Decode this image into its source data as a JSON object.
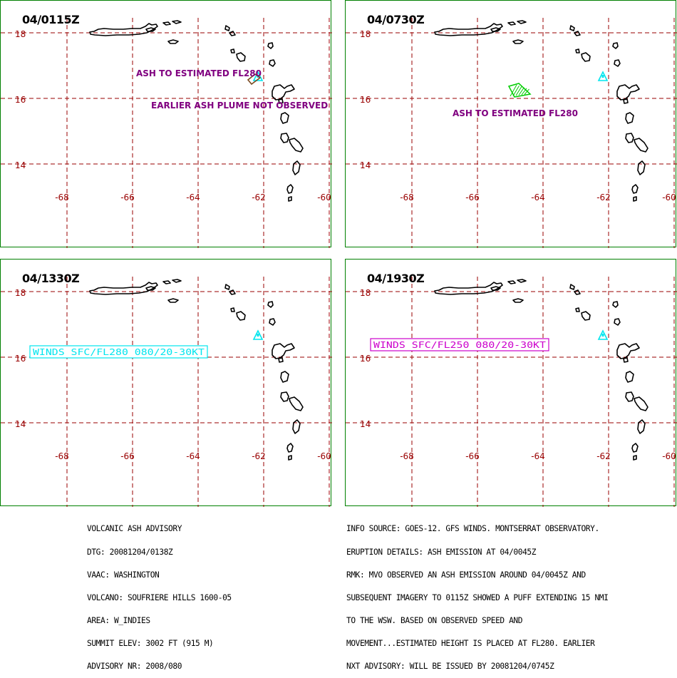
{
  "colors": {
    "grid": "#990000",
    "coast": "#000000",
    "ash": "#800080",
    "winds": "#00e5ee",
    "volcano": "#00e5ee",
    "plume_old": "#7a4a20",
    "plume_new": "#00cc00",
    "winds_box_b": "#cc00cc",
    "border": "#008000"
  },
  "map_panels": [
    {
      "time": "04/0115Z",
      "lat_labels": [
        "18",
        "16",
        "14"
      ],
      "lon_labels": [
        "-68",
        "-66",
        "-64",
        "-62",
        "-60"
      ],
      "annotations": [
        {
          "text": "ASH TO ESTIMATED FL280",
          "kind": "ash"
        },
        {
          "text": "EARLIER ASH PLUME NOT OBSERVED",
          "kind": "ash"
        }
      ]
    },
    {
      "time": "04/0730Z",
      "lat_labels": [
        "18",
        "16",
        "14"
      ],
      "lon_labels": [
        "-68",
        "-66",
        "-64",
        "-62",
        "-60"
      ],
      "annotations": [
        {
          "text": "ASH TO ESTIMATED FL280",
          "kind": "ash"
        }
      ]
    },
    {
      "time": "04/1330Z",
      "lat_labels": [
        "18",
        "16",
        "14"
      ],
      "lon_labels": [
        "-68",
        "-66",
        "-64",
        "-62",
        "-60"
      ],
      "annotations": [
        {
          "text": "WINDS SFC/FL280 080/20-30KT",
          "kind": "winds"
        }
      ]
    },
    {
      "time": "04/1930Z",
      "lat_labels": [
        "18",
        "16",
        "14"
      ],
      "lon_labels": [
        "-68",
        "-66",
        "-64",
        "-62",
        "-60"
      ],
      "annotations": [
        {
          "text": "WINDS SFC/FL250 080/20-30KT",
          "kind": "winds-b"
        }
      ]
    }
  ],
  "advisory_left": [
    "VOLCANIC ASH ADVISORY",
    "DTG: 20081204/0138Z",
    "VAAC: WASHINGTON",
    "VOLCANO: SOUFRIERE HILLS 1600-05",
    "AREA: W_INDIES",
    "SUMMIT ELEV: 3002 FT (915 M)",
    "ADVISORY NR: 2008/080"
  ],
  "advisory_right": [
    "INFO SOURCE: GOES-12. GFS WINDS. MONTSERRAT OBSERVATORY.",
    "ERUPTION DETAILS: ASH EMISSION AT 04/0045Z",
    "RMK: MVO OBSERVED AN ASH EMISSION AROUND 04/0045Z AND",
    "SUBSEQUENT IMAGERY TO 0115Z SHOWED A PUFF EXTENDING 15 NMI",
    "TO THE WSW. BASED ON OBSERVED SPEED AND",
    "MOVEMENT...ESTIMATED HEIGHT IS PLACED AT FL280. EARLIER",
    "NXT ADVISORY: WILL BE ISSUED BY 20081204/0745Z"
  ]
}
